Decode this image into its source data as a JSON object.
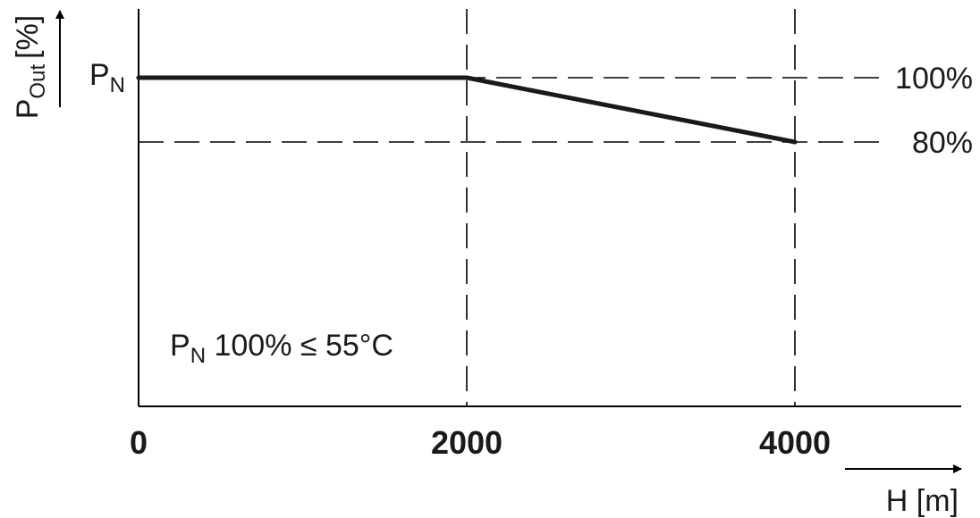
{
  "chart_data": {
    "type": "line",
    "x": [
      0,
      2000,
      4000
    ],
    "series": [
      {
        "values": [
          100,
          100,
          80
        ]
      }
    ],
    "xlabel": "H [m]",
    "ylabel_main": "P",
    "ylabel_sub": "Out",
    "ylabel_unit": "[%]",
    "x_ticks": [
      {
        "value": 0,
        "label": "0"
      },
      {
        "value": 2000,
        "label": "2000"
      },
      {
        "value": 4000,
        "label": "4000"
      }
    ],
    "xlim": [
      0,
      5000
    ],
    "ylim": [
      0,
      120
    ],
    "y_reference_lines": [
      {
        "value": 100,
        "label": "100%"
      },
      {
        "value": 80,
        "label": "80%"
      }
    ],
    "x_reference_lines": [
      2000,
      4000
    ],
    "pn_label": {
      "main": "P",
      "sub": "N",
      "value": 100
    },
    "annotation": {
      "main": "P",
      "sub": "N",
      "rest": " 100% ≤ 55°C"
    },
    "colors": {
      "line": "#1a1a1a",
      "axis": "#000000",
      "background": "#ffffff"
    }
  }
}
